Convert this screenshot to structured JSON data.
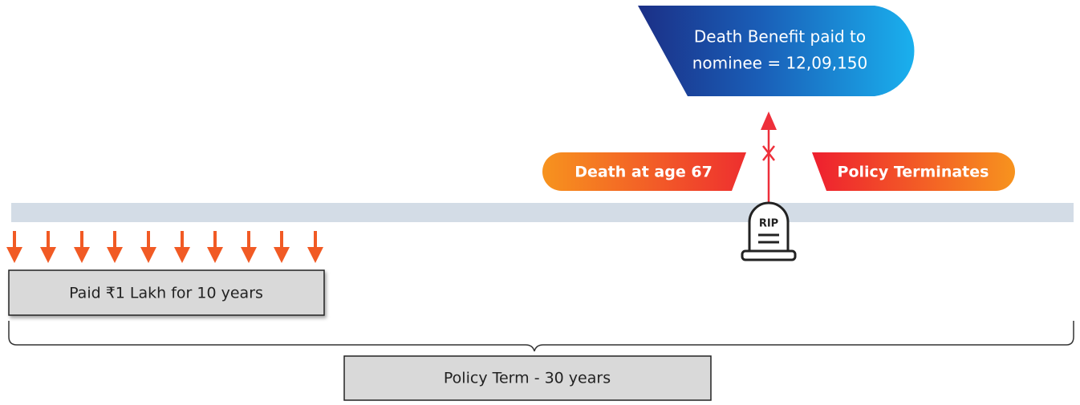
{
  "benefit": {
    "lines": [
      "Death Benefit paid to",
      "nominee = 12,09,150"
    ]
  },
  "death_label": "Death at age 67",
  "terminate_label": "Policy Terminates",
  "tombstone": "RIP",
  "paid_box": "Paid ₹1 Lakh for 10 years",
  "term_box": "Policy Term - 30 years"
}
